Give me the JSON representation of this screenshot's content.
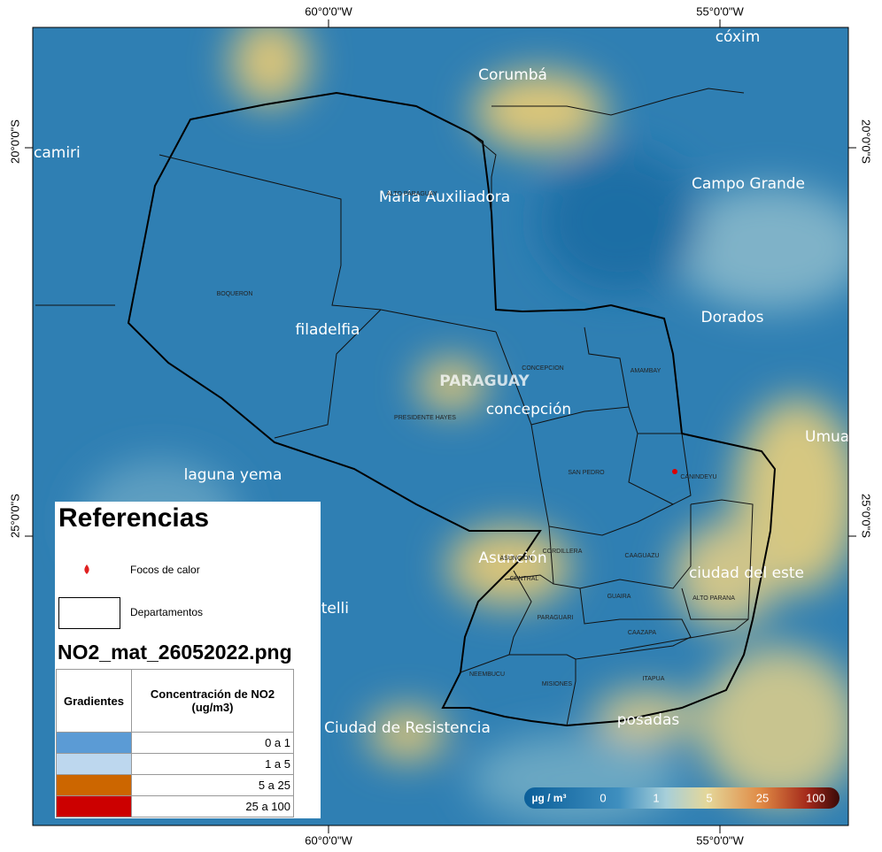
{
  "map": {
    "graticule": {
      "top": [
        "60°0'0\"W",
        "55°0'0\"W"
      ],
      "bottom": [
        "60°0'0\"W",
        "55°0'0\"W"
      ],
      "left": [
        "20°0'0\"S",
        "25°0'0\"S"
      ],
      "right": [
        "20°0'0\"S",
        "25°0'0\"S"
      ]
    },
    "cities": [
      "cóxim",
      "Corumbá",
      "camiri",
      "Maria Auxiliadora",
      "Campo Grande",
      "Dorados",
      "filadelfia",
      "PARAGUAY",
      "concepción",
      "Umuarama",
      "laguna yema",
      "Asunción",
      "ciudad del este",
      "Castelli",
      "Ciudad de Resistencia",
      "posadas"
    ],
    "departments": [
      "BOQUERON",
      "ALTO PARAGUAY",
      "CONCEPCION",
      "AMAMBAY",
      "PRESIDENTE HAYES",
      "SAN PEDRO",
      "CANINDEYU",
      "CORDILLERA",
      "ASUNCION",
      "CENTRAL",
      "CAAGUAZU",
      "GUAIRA",
      "ALTO PARANA",
      "PARAGUARI",
      "CAAZAPA",
      "NEEMBUCU",
      "MISIONES",
      "ITAPUA"
    ],
    "colorbar": {
      "unit": "µg / m³",
      "ticks": [
        0,
        1,
        5,
        25,
        100
      ]
    }
  },
  "legend": {
    "title": "Referencias",
    "items": [
      "Focos de calor",
      "Departamentos"
    ],
    "layer": "NO2_mat_26052022.png",
    "table": {
      "headers": [
        "Gradientes",
        "Concentración de NO2 (ug/m3)"
      ],
      "rows": [
        "0 a 1",
        "1 a 5",
        "5 a 25",
        "25 a 100"
      ],
      "colors": [
        "#5b9bd5",
        "#bdd7ee",
        "#cc6600",
        "#cc0000"
      ]
    }
  }
}
